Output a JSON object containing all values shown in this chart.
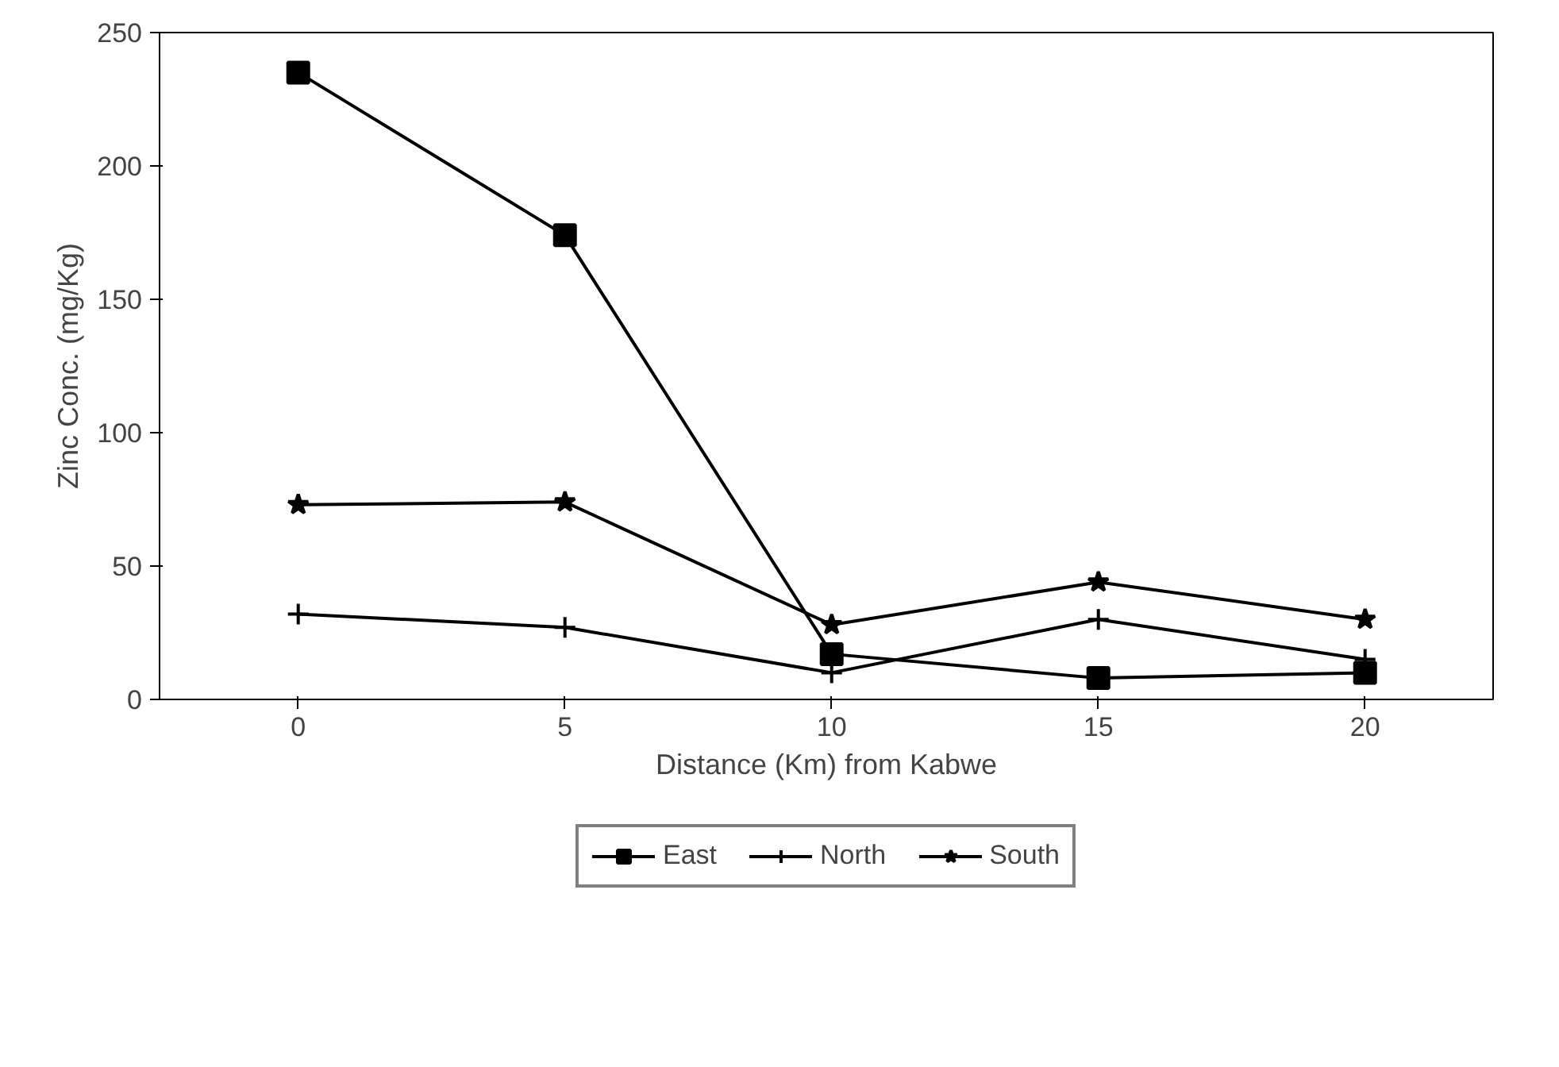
{
  "chart_data": {
    "type": "line",
    "xlabel": "Distance (Km) from Kabwe",
    "ylabel": "Zinc Conc. (mg/Kg)",
    "x": [
      0,
      5,
      10,
      15,
      20
    ],
    "series": [
      {
        "name": "East",
        "color": "#000000",
        "marker": "square",
        "values": [
          235,
          174,
          17,
          8,
          10
        ]
      },
      {
        "name": "North",
        "color": "#000000",
        "marker": "cross",
        "values": [
          32,
          27,
          10,
          30,
          15
        ]
      },
      {
        "name": "South",
        "color": "#000000",
        "marker": "star",
        "values": [
          73,
          74,
          28,
          44,
          30
        ]
      }
    ],
    "xlim": [
      -2.6,
      22.4
    ],
    "ylim": [
      0,
      250
    ],
    "xticks": [
      0,
      5,
      10,
      15,
      20
    ],
    "yticks": [
      0,
      50,
      100,
      150,
      200,
      250
    ],
    "grid": false,
    "legend": "bottom",
    "line_style": "solid"
  }
}
